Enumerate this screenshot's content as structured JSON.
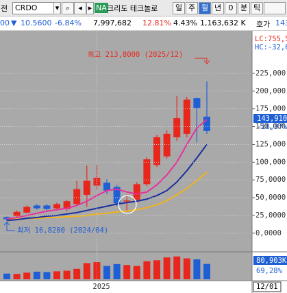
{
  "toolbar": {
    "tab": "전",
    "symbol": "CRDO",
    "badge": "NA",
    "name": "크리도 테크놀로",
    "periods": [
      "일",
      "주",
      "월",
      "년",
      "0",
      "분",
      "틱"
    ]
  },
  "quote": {
    "prefix": "00",
    "arrow": "▼",
    "change": "10.5600",
    "change_pct": "-6.84%",
    "volume": "7,997,682",
    "vol_ratio": "12.81%",
    "turnover": "4.43%",
    "amount": "1,163,632 K",
    "ask_label": "호가",
    "ask": "143"
  },
  "chart_data": {
    "type": "candlestick",
    "categories": [
      null,
      null,
      null,
      null,
      null,
      null,
      null,
      null,
      null,
      "2025",
      null,
      null,
      null,
      null,
      null,
      null,
      null,
      null,
      null,
      null,
      null
    ],
    "open": [
      22.5,
      24,
      29,
      39,
      39,
      35,
      34,
      41,
      54,
      67,
      71,
      65,
      45,
      47,
      69,
      96,
      108,
      135,
      140,
      190,
      164
    ],
    "high": [
      23.5,
      32,
      39,
      41,
      41,
      43,
      47,
      74,
      95,
      96,
      76,
      68,
      54,
      72,
      107,
      138,
      145,
      193,
      192,
      191,
      213.8
    ],
    "low": [
      16.82,
      22,
      28,
      33,
      32,
      33,
      31,
      40,
      37,
      62,
      55,
      38,
      32,
      45,
      66,
      93,
      105,
      130,
      135,
      128,
      140
    ],
    "close": [
      19.6,
      30,
      37,
      35,
      34,
      41,
      45,
      62,
      74,
      78,
      60,
      42,
      46,
      69,
      104,
      135,
      140,
      162,
      188,
      176,
      143.91
    ],
    "up_color": "#e8261c",
    "down_color": "#1f5fd6",
    "series": [
      {
        "color": "#e8309a",
        "values": [
          20,
          22,
          25,
          28,
          31,
          33,
          35,
          39,
          45,
          53,
          60,
          62,
          58,
          55,
          58,
          68,
          82,
          100,
          125,
          148,
          160
        ]
      },
      {
        "color": "#1a2d9e",
        "values": [
          18,
          19,
          21,
          22,
          24,
          25,
          27,
          29,
          32,
          35,
          38,
          41,
          43,
          45,
          48,
          53,
          60,
          72,
          88,
          106,
          125
        ]
      },
      {
        "color": "#f0b31c",
        "values": [
          20,
          20,
          21,
          21,
          22,
          22,
          23,
          24,
          25,
          27,
          28,
          30,
          31,
          33,
          36,
          40,
          46,
          54,
          63,
          74,
          86
        ]
      }
    ],
    "ylim": [
      -5,
      280
    ],
    "yticks": [
      {
        "value": 0,
        "label": "0,0000"
      },
      {
        "value": 25,
        "label": "25,0000"
      },
      {
        "value": 50,
        "label": "50,0000"
      },
      {
        "value": 75,
        "label": "75,0000"
      },
      {
        "value": 100,
        "label": "100,000"
      },
      {
        "value": 125,
        "label": "125,000"
      },
      {
        "value": 150,
        "label": "150,000"
      },
      {
        "value": 175,
        "label": "175,000"
      },
      {
        "value": 200,
        "label": "200,000"
      },
      {
        "value": 225,
        "label": "225,000"
      }
    ],
    "grid": true,
    "volume": {
      "values": [
        30000,
        28000,
        35000,
        40000,
        38000,
        42000,
        45000,
        55000,
        85000,
        90000,
        70000,
        80000,
        75000,
        70000,
        95000,
        100000,
        115000,
        120000,
        110000,
        105000,
        80903
      ],
      "ylim": [
        0,
        130000
      ],
      "last_label": "80,903K",
      "ratio_label": "69,28%"
    },
    "high_label": "최고 213,8000 (2025/12)",
    "low_label": "최저 16,8200 (2024/04)",
    "lc_label": "LC:755,5",
    "hc_label": "HC:-32,6",
    "last_price_label": "143,910",
    "last_change_label": "-18,97%",
    "crosshair_date": "12/01"
  }
}
